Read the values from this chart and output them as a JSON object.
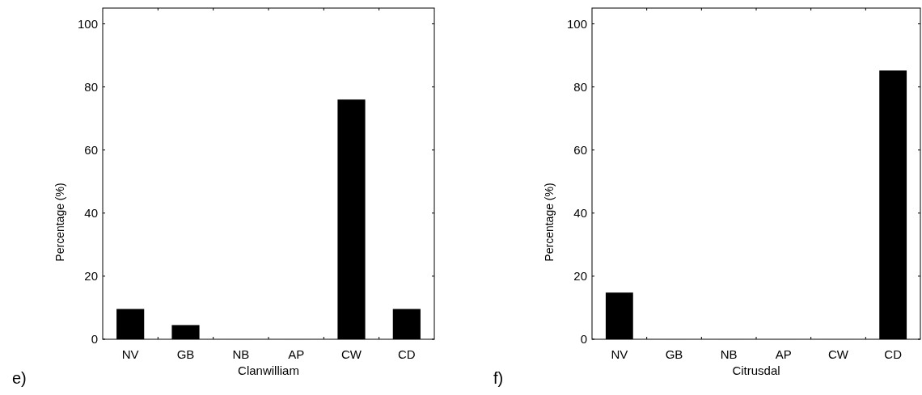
{
  "chart_data": [
    {
      "type": "bar",
      "categories": [
        "NV",
        "GB",
        "NB",
        "AP",
        "CW",
        "CD"
      ],
      "values": [
        9.6,
        4.5,
        0,
        0,
        76,
        9.6
      ],
      "color": "#000000",
      "xlabel": "Clanwilliam",
      "ylabel": "Percentage (%)",
      "ylim": [
        0,
        105
      ],
      "yticks": [
        0,
        20,
        40,
        60,
        80,
        100
      ],
      "grid": false,
      "annotations": [
        "e)"
      ]
    },
    {
      "type": "bar",
      "categories": [
        "NV",
        "GB",
        "NB",
        "AP",
        "CW",
        "CD"
      ],
      "values": [
        14.8,
        0,
        0,
        0,
        0,
        85.2
      ],
      "color": "#000000",
      "xlabel": "Citrusdal",
      "ylabel": "Percentage (%)",
      "ylim": [
        0,
        105
      ],
      "yticks": [
        0,
        20,
        40,
        60,
        80,
        100
      ],
      "grid": false,
      "annotations": [
        "f)"
      ]
    }
  ]
}
